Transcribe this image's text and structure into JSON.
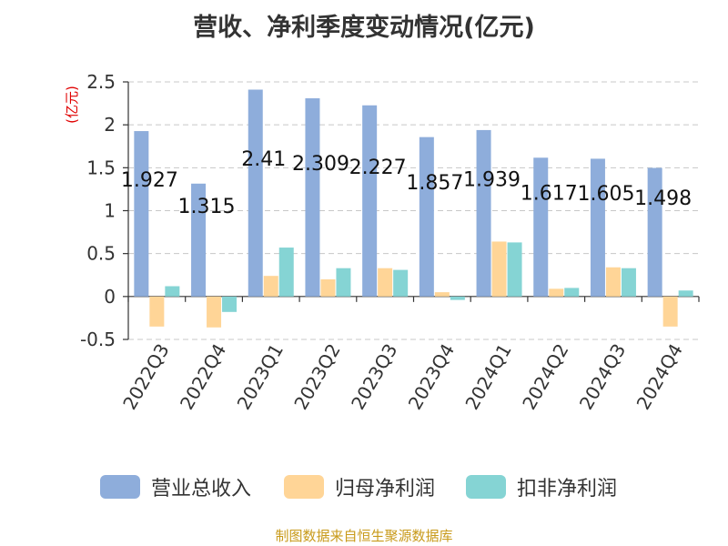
{
  "chart_data": {
    "type": "bar",
    "title": "营收、净利季度变动情况(亿元)",
    "ylabel": "(亿元)",
    "ylim": [
      -0.5,
      2.5
    ],
    "yticks": [
      "-0.5",
      "0",
      "0.5",
      "1",
      "1.5",
      "2",
      "2.5"
    ],
    "categories": [
      "2022Q3",
      "2022Q4",
      "2023Q1",
      "2023Q2",
      "2023Q3",
      "2023Q4",
      "2024Q1",
      "2024Q2",
      "2024Q3",
      "2024Q4"
    ],
    "series": [
      {
        "name": "营业总收入",
        "color": "#8eaddb",
        "values": [
          1.927,
          1.315,
          2.41,
          2.309,
          2.227,
          1.857,
          1.939,
          1.617,
          1.605,
          1.498
        ]
      },
      {
        "name": "归母净利润",
        "color": "#ffd597",
        "values": [
          -0.35,
          -0.36,
          0.24,
          0.2,
          0.33,
          0.05,
          0.64,
          0.09,
          0.34,
          -0.35
        ]
      },
      {
        "name": "扣非净利润",
        "color": "#85d4d4",
        "values": [
          0.12,
          -0.18,
          0.57,
          0.33,
          0.31,
          -0.04,
          0.63,
          0.1,
          0.33,
          0.07
        ]
      }
    ],
    "data_labels": [
      "1.927",
      "1.315",
      "2.41",
      "2.309",
      "2.227",
      "1.857",
      "1.939",
      "1.617",
      "1.605",
      "1.498"
    ],
    "grid": true,
    "legend_position": "bottom"
  },
  "source": "制图数据来自恒生聚源数据库"
}
